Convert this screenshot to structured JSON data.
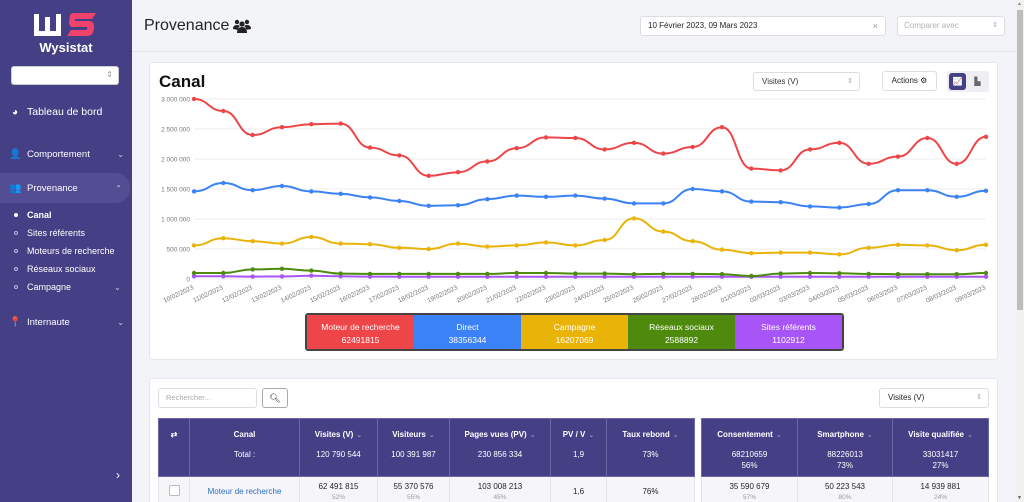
{
  "app": {
    "brand": "Wysistat"
  },
  "sidebar": {
    "select_value": "",
    "dashboard": "Tableau de bord",
    "items": [
      {
        "label": "Comportement",
        "icon": "user-cog-icon"
      },
      {
        "label": "Provenance",
        "icon": "users-icon"
      },
      {
        "label": "Internaute",
        "icon": "map-pin-icon"
      }
    ],
    "sub_items": [
      {
        "label": "Canal"
      },
      {
        "label": "Sites référents"
      },
      {
        "label": "Moteurs de recherche"
      },
      {
        "label": "Réseaux sociaux"
      },
      {
        "label": "Campagne"
      }
    ]
  },
  "header": {
    "title": "Provenance",
    "date_range": "10 Février 2023, 09 Mars 2023",
    "compare_placeholder": "Comparer avec"
  },
  "chart_card": {
    "title": "Canal",
    "metric": "Visites (V)",
    "actions": "Actions"
  },
  "colors": {
    "Moteur de recherche": "#ee4648",
    "Direct": "#3b82f6",
    "Campagne": "#eab308",
    "Réseaux sociaux": "#4d8a0d",
    "Sites référents": "#a855f7",
    "sidebar": "#453f85"
  },
  "chart_data": {
    "type": "line",
    "title": "Canal",
    "xlabel": "",
    "ylabel": "Visites (V)",
    "ylim": [
      0,
      3000000
    ],
    "yticks": [
      0,
      500000,
      1000000,
      1500000,
      2000000,
      2500000,
      3000000
    ],
    "ytick_labels": [
      "0",
      "500 000",
      "1 000 000",
      "1 500 000",
      "2 000 000",
      "2 500 000",
      "3 000 000"
    ],
    "grid": true,
    "legend": "bottom",
    "x": [
      "10/02/2023",
      "11/02/2023",
      "12/02/2023",
      "13/02/2023",
      "14/02/2023",
      "15/02/2023",
      "16/02/2023",
      "17/02/2023",
      "18/02/2023",
      "19/02/2023",
      "20/02/2023",
      "21/02/2023",
      "22/02/2023",
      "23/02/2023",
      "24/02/2023",
      "25/02/2023",
      "26/02/2023",
      "27/02/2023",
      "28/02/2023",
      "01/03/2023",
      "02/03/2023",
      "03/03/2023",
      "04/03/2023",
      "05/03/2023",
      "06/03/2023",
      "07/03/2023",
      "08/03/2023",
      "09/03/2023"
    ],
    "series": [
      {
        "name": "Moteur de recherche",
        "total": "62491815",
        "values": [
          3000000,
          2800000,
          2400000,
          2530000,
          2580000,
          2590000,
          2190000,
          2060000,
          1720000,
          1780000,
          1960000,
          2180000,
          2360000,
          2350000,
          2160000,
          2270000,
          2090000,
          2200000,
          2530000,
          1840000,
          1810000,
          2160000,
          2270000,
          1920000,
          2040000,
          2350000,
          1920000,
          2370000
        ]
      },
      {
        "name": "Direct",
        "total": "38356344",
        "values": [
          1460000,
          1600000,
          1480000,
          1550000,
          1460000,
          1420000,
          1360000,
          1300000,
          1220000,
          1230000,
          1330000,
          1390000,
          1370000,
          1390000,
          1340000,
          1260000,
          1260000,
          1500000,
          1460000,
          1290000,
          1280000,
          1210000,
          1190000,
          1250000,
          1480000,
          1480000,
          1370000,
          1470000
        ]
      },
      {
        "name": "Campagne",
        "total": "16207069",
        "values": [
          560000,
          680000,
          630000,
          590000,
          700000,
          590000,
          580000,
          520000,
          500000,
          590000,
          540000,
          560000,
          610000,
          560000,
          650000,
          1010000,
          790000,
          630000,
          490000,
          430000,
          440000,
          440000,
          410000,
          520000,
          570000,
          560000,
          480000,
          570000
        ]
      },
      {
        "name": "Réseaux sociaux",
        "total": "2588892",
        "values": [
          100000,
          100000,
          160000,
          170000,
          140000,
          90000,
          85000,
          85000,
          85000,
          85000,
          85000,
          100000,
          100000,
          90000,
          90000,
          80000,
          85000,
          85000,
          80000,
          50000,
          90000,
          100000,
          95000,
          85000,
          80000,
          80000,
          80000,
          100000
        ]
      },
      {
        "name": "Sites référents",
        "total": "1102912",
        "values": [
          45000,
          45000,
          40000,
          42000,
          55000,
          45000,
          40000,
          38000,
          38000,
          38000,
          38000,
          38000,
          38000,
          38000,
          38000,
          38000,
          38000,
          38000,
          38000,
          38000,
          38000,
          38000,
          38000,
          38000,
          38000,
          38000,
          38000,
          38000
        ]
      }
    ]
  },
  "table": {
    "search_placeholder": "Rechercher...",
    "metric": "Visites (V)",
    "columns": [
      "Canal",
      "Visites (V)",
      "Visiteurs",
      "Pages vues (PV)",
      "PV / V",
      "Taux rebond"
    ],
    "totals_label": "Total :",
    "totals": [
      "120 790 544",
      "100 391 987",
      "230 856 334",
      "1,9",
      "73%"
    ],
    "columns2": [
      "Consentement",
      "Smartphone",
      "Visite qualifiée"
    ],
    "totals2": [
      {
        "v": "68210659",
        "p": "56%"
      },
      {
        "v": "88226013",
        "p": "73%"
      },
      {
        "v": "33031417",
        "p": "27%"
      }
    ],
    "rows": [
      {
        "canal": "Moteur de recherche",
        "visites": "62 491 815",
        "visites_pct": "52%",
        "visiteurs": "55 370 576",
        "visiteurs_pct": "55%",
        "pv": "103 008 213",
        "pv_pct": "45%",
        "pvv": "1,6",
        "rebond": "76%",
        "consentement": "35 590 679",
        "consentement_pct": "57%",
        "smartphone": "50 223 543",
        "smartphone_pct": "80%",
        "qualifiee": "14 939 881",
        "qualifiee_pct": "24%"
      }
    ]
  }
}
